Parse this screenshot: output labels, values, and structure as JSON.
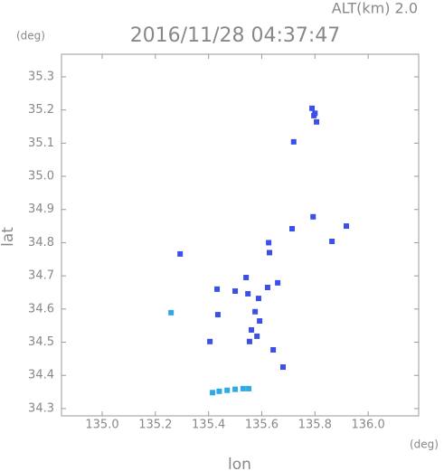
{
  "chart_data": {
    "type": "scatter",
    "title": "2016/11/28 04:37:47",
    "subtitle": "ALT(km) 2.0",
    "y_unit": "(deg)",
    "x_unit": "(deg)",
    "x_label": "lon",
    "y_label": "lat",
    "xlim": [
      134.847,
      136.19
    ],
    "ylim": [
      34.278,
      35.368
    ],
    "xticks": [
      {
        "value": 135.0,
        "label": "135.0"
      },
      135.2,
      135.4,
      135.6,
      135.8,
      {
        "value": 136.0,
        "label": "136.0"
      }
    ],
    "yticks": [
      34.3,
      34.4,
      34.5,
      34.6,
      34.7,
      34.8,
      34.9,
      {
        "value": 35.0,
        "label": "35.0"
      },
      35.1,
      35.2,
      35.3
    ],
    "series": [
      {
        "color": "#3c50e8",
        "x": [
          135.796,
          135.789,
          135.806,
          135.8,
          135.72,
          135.793,
          135.918,
          135.864,
          135.714,
          135.626,
          135.629,
          135.293,
          135.66,
          135.541,
          135.622,
          135.588,
          135.548,
          135.575,
          135.592,
          135.561,
          135.554,
          135.582,
          135.5,
          135.432,
          135.435,
          135.405,
          135.643,
          135.68
        ],
        "y": [
          35.183,
          35.205,
          35.164,
          35.19,
          35.104,
          34.878,
          34.85,
          34.804,
          34.842,
          34.8,
          34.77,
          34.766,
          34.679,
          34.695,
          34.665,
          34.632,
          34.646,
          34.592,
          34.564,
          34.537,
          34.502,
          34.518,
          34.654,
          34.66,
          34.583,
          34.502,
          34.477,
          34.425
        ]
      },
      {
        "color": "#2eaae8",
        "x": [
          135.259,
          135.415,
          135.44,
          135.47,
          135.5,
          135.53,
          135.551
        ],
        "y": [
          34.589,
          34.348,
          34.352,
          34.355,
          34.358,
          34.36,
          34.36
        ]
      }
    ]
  }
}
